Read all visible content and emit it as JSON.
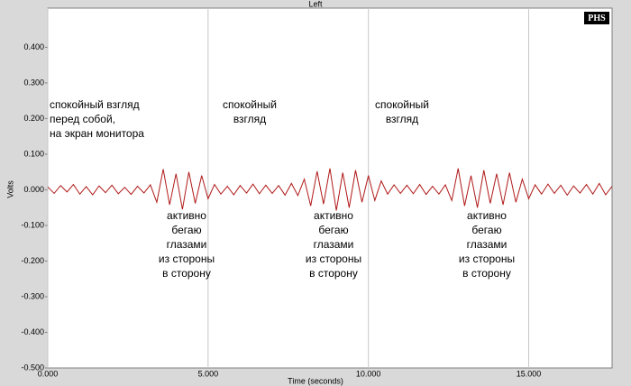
{
  "chart_data": {
    "type": "line",
    "title": "Left",
    "logo": "PHS",
    "x_label": "Time (seconds)",
    "y_label": "Volts",
    "x": [
      0,
      0.2,
      0.4,
      0.6,
      0.8,
      1,
      1.2,
      1.4,
      1.6,
      1.8,
      2,
      2.2,
      2.4,
      2.6,
      2.8,
      3,
      3.2,
      3.4,
      3.6,
      3.8,
      4,
      4.2,
      4.4,
      4.6,
      4.8,
      5,
      5.2,
      5.4,
      5.6,
      5.8,
      6,
      6.2,
      6.4,
      6.6,
      6.8,
      7,
      7.2,
      7.4,
      7.6,
      7.8,
      8,
      8.2,
      8.4,
      8.6,
      8.8,
      9,
      9.2,
      9.4,
      9.6,
      9.8,
      10,
      10.2,
      10.4,
      10.6,
      10.8,
      11,
      11.2,
      11.4,
      11.6,
      11.8,
      12,
      12.2,
      12.4,
      12.6,
      12.8,
      13,
      13.2,
      13.4,
      13.6,
      13.8,
      14,
      14.2,
      14.4,
      14.6,
      14.8,
      15,
      15.2,
      15.4,
      15.6,
      15.8,
      16,
      16.2,
      16.4,
      16.6,
      16.8,
      17,
      17.2,
      17.4,
      17.6
    ],
    "values": [
      0.008,
      -0.01,
      0.012,
      -0.006,
      0.015,
      -0.012,
      0.009,
      -0.014,
      0.011,
      -0.008,
      0.013,
      -0.011,
      0.007,
      -0.013,
      0.01,
      -0.009,
      0.014,
      -0.035,
      0.058,
      -0.042,
      0.045,
      -0.055,
      0.05,
      -0.038,
      0.04,
      -0.025,
      0.015,
      -0.012,
      0.01,
      -0.014,
      0.012,
      -0.009,
      0.016,
      -0.011,
      0.013,
      -0.01,
      0.012,
      -0.015,
      0.018,
      -0.016,
      0.03,
      -0.045,
      0.052,
      -0.04,
      0.06,
      -0.058,
      0.048,
      -0.05,
      0.055,
      -0.035,
      0.04,
      -0.03,
      0.025,
      -0.012,
      0.014,
      -0.01,
      0.013,
      -0.011,
      0.015,
      -0.013,
      0.01,
      -0.012,
      0.014,
      -0.03,
      0.06,
      -0.045,
      0.04,
      -0.05,
      0.055,
      -0.038,
      0.045,
      -0.042,
      0.048,
      -0.035,
      0.03,
      -0.025,
      0.014,
      -0.012,
      0.016,
      -0.01,
      0.013,
      -0.015,
      0.011,
      -0.009,
      0.015,
      -0.012,
      0.018,
      -0.014,
      0.01
    ],
    "color": "#b01818",
    "xlim": [
      0,
      17.6
    ],
    "ylim": [
      -0.5,
      0.51
    ],
    "xticks": [
      {
        "value": 0,
        "label": "0.000"
      },
      {
        "value": 5,
        "label": "5.000"
      },
      {
        "value": 10,
        "label": "10.000"
      },
      {
        "value": 15,
        "label": "15.000"
      }
    ],
    "yticks": [
      {
        "value": -0.5,
        "label": "-0.500"
      },
      {
        "value": -0.4,
        "label": "-0.400"
      },
      {
        "value": -0.3,
        "label": "-0.300"
      },
      {
        "value": -0.2,
        "label": "-0.200"
      },
      {
        "value": -0.1,
        "label": "-0.100"
      },
      {
        "value": 0,
        "label": "0.000"
      },
      {
        "value": 0.1,
        "label": "0.100"
      },
      {
        "value": 0.2,
        "label": "0.200"
      },
      {
        "value": 0.3,
        "label": "0.300"
      },
      {
        "value": 0.4,
        "label": "0.400"
      }
    ],
    "x_grid": true,
    "annotations": [
      [
        "спокойный взгляд",
        "перед собой,",
        "на экран монитора"
      ],
      [
        "спокойный",
        "взгляд"
      ],
      [
        "спокойный",
        "взгляд"
      ],
      [
        "активно",
        "бегаю",
        "глазами",
        "из стороны",
        "в сторону"
      ],
      [
        "активно",
        "бегаю",
        "глазами",
        "из стороны",
        "в сторону"
      ],
      [
        "активно",
        "бегаю",
        "глазами",
        "из стороны",
        "в сторону"
      ]
    ]
  }
}
